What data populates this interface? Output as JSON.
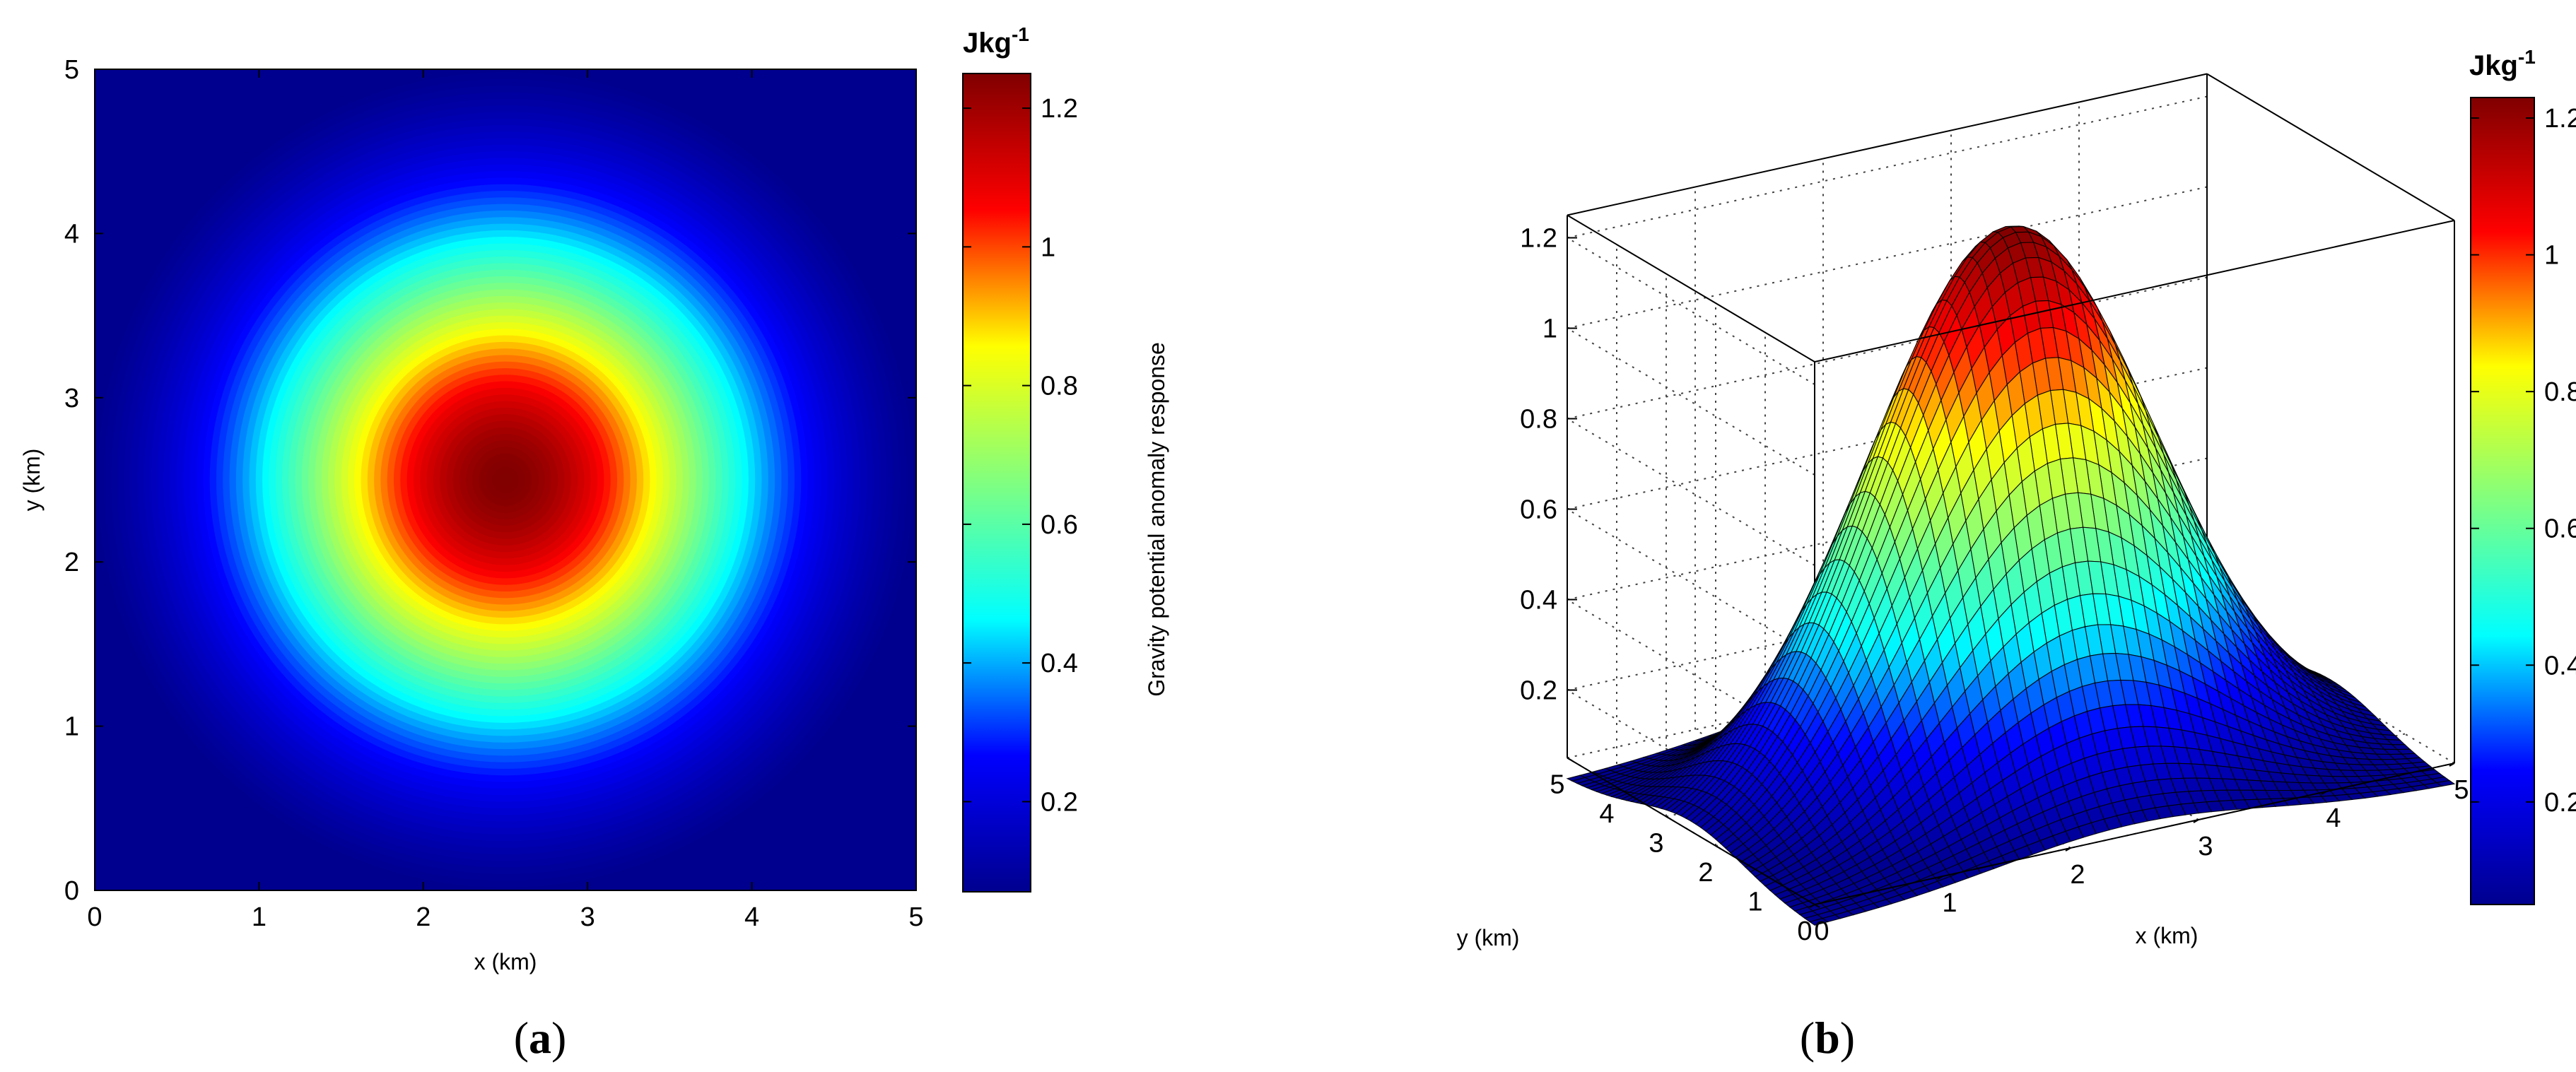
{
  "colors": {
    "colormap": "jet",
    "jet_stops": [
      "#00008f",
      "#0000ff",
      "#00ffff",
      "#80ff80",
      "#ffff00",
      "#ff0000",
      "#800000"
    ],
    "edge": "#000000",
    "background": "#ffffff"
  },
  "panels": [
    {
      "open": "(",
      "letter": "a",
      "close": ")"
    },
    {
      "open": "(",
      "letter": "b",
      "close": ")"
    }
  ],
  "chart_data": [
    {
      "type": "heatmap",
      "field": "gaussian",
      "center": [
        2.5,
        2.5
      ],
      "peak": 1.25,
      "sigma_km": 1.05,
      "xlabel": "x (km)",
      "ylabel": "y (km)",
      "xlim": [
        0,
        5
      ],
      "ylim": [
        0,
        5
      ],
      "xticks": [
        "0",
        "1",
        "2",
        "3",
        "4",
        "5"
      ],
      "yticks": [
        "0",
        "1",
        "2",
        "3",
        "4",
        "5"
      ],
      "colorbar": {
        "title": "Jkg",
        "title_sup": "-1",
        "range": [
          0.07,
          1.25
        ],
        "ticks": [
          "0.2",
          "0.4",
          "0.6",
          "0.8",
          "1",
          "1.2"
        ]
      }
    },
    {
      "type": "surface",
      "field": "gaussian",
      "center": [
        2.5,
        2.5
      ],
      "peak": 1.23,
      "sigma_km": 1.05,
      "xlabel": "x (km)",
      "ylabel": "y (km)",
      "zlabel": "Gravity potential anomaly response",
      "xlim": [
        0,
        5
      ],
      "ylim": [
        0,
        5
      ],
      "zlim": [
        0.05,
        1.25
      ],
      "xticks": [
        "0",
        "1",
        "2",
        "3",
        "4",
        "5"
      ],
      "yticks": [
        "0",
        "1",
        "2",
        "3",
        "4",
        "5"
      ],
      "zticks": [
        "0.2",
        "0.4",
        "0.6",
        "0.8",
        "1",
        "1.2"
      ],
      "grid": true,
      "colorbar": {
        "title": "Jkg",
        "title_sup": "-1",
        "range": [
          0.05,
          1.23
        ],
        "ticks": [
          "0.2",
          "0.4",
          "0.6",
          "0.8",
          "1",
          "1.2"
        ]
      }
    }
  ]
}
